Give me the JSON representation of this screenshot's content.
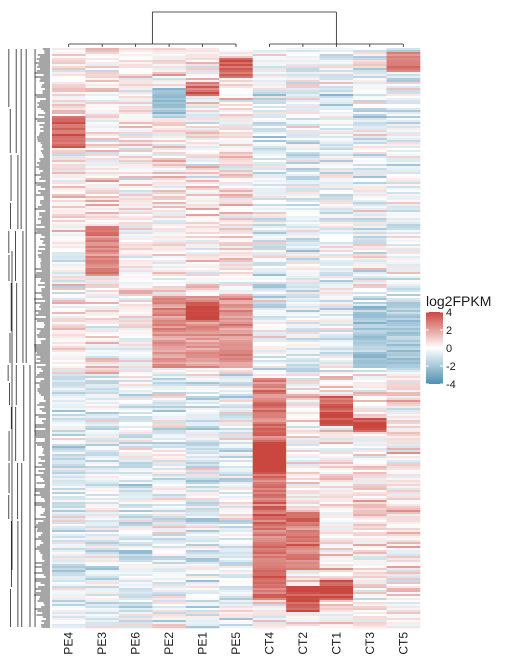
{
  "chart_data": {
    "type": "heatmap",
    "title": "",
    "xlabel": "",
    "ylabel": "",
    "columns": [
      "PE4",
      "PE3",
      "PE6",
      "PE2",
      "PE1",
      "PE5",
      "CT4",
      "CT2",
      "CT1",
      "CT3",
      "CT5"
    ],
    "column_groups": [
      {
        "name": "",
        "members": [
          "PE4",
          "PE3",
          "PE6",
          "PE2",
          "PE1",
          "PE5"
        ]
      },
      {
        "name": "",
        "members": [
          "CT4",
          "CT2",
          "CT1",
          "CT3",
          "CT5"
        ]
      }
    ],
    "row_dendrogram": true,
    "column_dendrogram": true,
    "value_range": [
      -4,
      4
    ],
    "block_patterns": [
      {
        "columns": [
          "PE4"
        ],
        "rows_fraction": [
          0.12,
          0.17
        ],
        "value": 3.0
      },
      {
        "columns": [
          "PE2"
        ],
        "rows_fraction": [
          0.07,
          0.12
        ],
        "value": -2.5
      },
      {
        "columns": [
          "PE5"
        ],
        "rows_fraction": [
          0.02,
          0.05
        ],
        "value": 3.0
      },
      {
        "columns": [
          "CT5"
        ],
        "rows_fraction": [
          0.01,
          0.04
        ],
        "value": 3.0
      },
      {
        "columns": [
          "PE1"
        ],
        "rows_fraction": [
          0.06,
          0.08
        ],
        "value": 3.0
      },
      {
        "columns": [
          "PE3"
        ],
        "rows_fraction": [
          0.31,
          0.39
        ],
        "value": 2.2
      },
      {
        "columns": [
          "PE2",
          "PE1",
          "PE5"
        ],
        "rows_fraction": [
          0.43,
          0.55
        ],
        "value": 2.0
      },
      {
        "columns": [
          "PE1"
        ],
        "rows_fraction": [
          0.44,
          0.47
        ],
        "value": 3.5
      },
      {
        "columns": [
          "CT4"
        ],
        "rows_fraction": [
          0.57,
          0.95
        ],
        "value": 2.5
      },
      {
        "columns": [
          "CT4"
        ],
        "rows_fraction": [
          0.68,
          0.73
        ],
        "value": 4.0
      },
      {
        "columns": [
          "CT2"
        ],
        "rows_fraction": [
          0.8,
          0.9
        ],
        "value": 2.5
      },
      {
        "columns": [
          "CT2"
        ],
        "rows_fraction": [
          0.93,
          0.97
        ],
        "value": 3.5
      },
      {
        "columns": [
          "CT1"
        ],
        "rows_fraction": [
          0.6,
          0.65
        ],
        "value": 3.0
      },
      {
        "columns": [
          "CT1"
        ],
        "rows_fraction": [
          0.92,
          0.95
        ],
        "value": 3.5
      },
      {
        "columns": [
          "CT3"
        ],
        "rows_fraction": [
          0.64,
          0.66
        ],
        "value": 3.5
      },
      {
        "columns": [
          "CT3",
          "CT5"
        ],
        "rows_fraction": [
          0.44,
          0.55
        ],
        "value": -1.5
      }
    ],
    "legend": {
      "title": "log2FPKM",
      "ticks": [
        4,
        2,
        0,
        -2,
        -4
      ],
      "tick_labels": [
        "4",
        "2",
        "0",
        "-2",
        "-4"
      ],
      "colors": {
        "high": "#c9473f",
        "mid": "#ffffff",
        "low": "#4d8fb3"
      },
      "placement": "right"
    }
  }
}
